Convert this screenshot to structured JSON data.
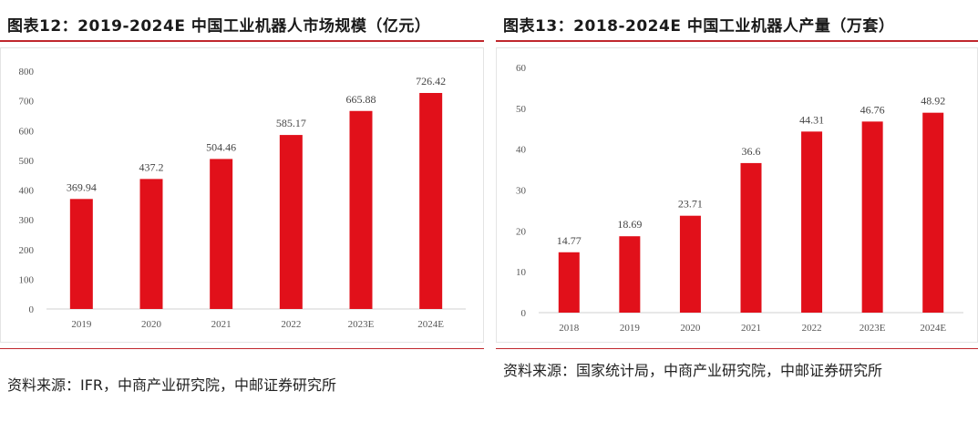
{
  "charts": [
    {
      "title": "图表12：2019-2024E 中国工业机器人市场规模（亿元）",
      "source": "资料来源：IFR，中商产业研究院，中邮证券研究所",
      "bar_color": "#e1101a"
    },
    {
      "title": "图表13：2018-2024E 中国工业机器人产量（万套）",
      "source": "资料来源：国家统计局，中商产业研究院，中邮证券研究所",
      "bar_color": "#e1101a"
    }
  ],
  "chart_data": [
    {
      "type": "bar",
      "title": "图表12：2019-2024E 中国工业机器人市场规模（亿元）",
      "xlabel": "",
      "ylabel": "",
      "categories": [
        "2019",
        "2020",
        "2021",
        "2022",
        "2023E",
        "2024E"
      ],
      "values": [
        369.94,
        437.2,
        504.46,
        585.17,
        665.88,
        726.42
      ],
      "value_labels": [
        "369.94",
        "437.2",
        "504.46",
        "585.17",
        "665.88",
        "726.42"
      ],
      "ylim": [
        0,
        800
      ],
      "yticks": [
        0,
        100,
        200,
        300,
        400,
        500,
        600,
        700,
        800
      ],
      "grid": false,
      "legend": "none"
    },
    {
      "type": "bar",
      "title": "图表13：2018-2024E 中国工业机器人产量（万套）",
      "xlabel": "",
      "ylabel": "",
      "categories": [
        "2018",
        "2019",
        "2020",
        "2021",
        "2022",
        "2023E",
        "2024E"
      ],
      "values": [
        14.77,
        18.69,
        23.71,
        36.6,
        44.31,
        46.76,
        48.92
      ],
      "value_labels": [
        "14.77",
        "18.69",
        "23.71",
        "36.6",
        "44.31",
        "46.76",
        "48.92"
      ],
      "ylim": [
        0,
        60
      ],
      "yticks": [
        0,
        10,
        20,
        30,
        40,
        50,
        60
      ],
      "grid": false,
      "legend": "none"
    }
  ]
}
